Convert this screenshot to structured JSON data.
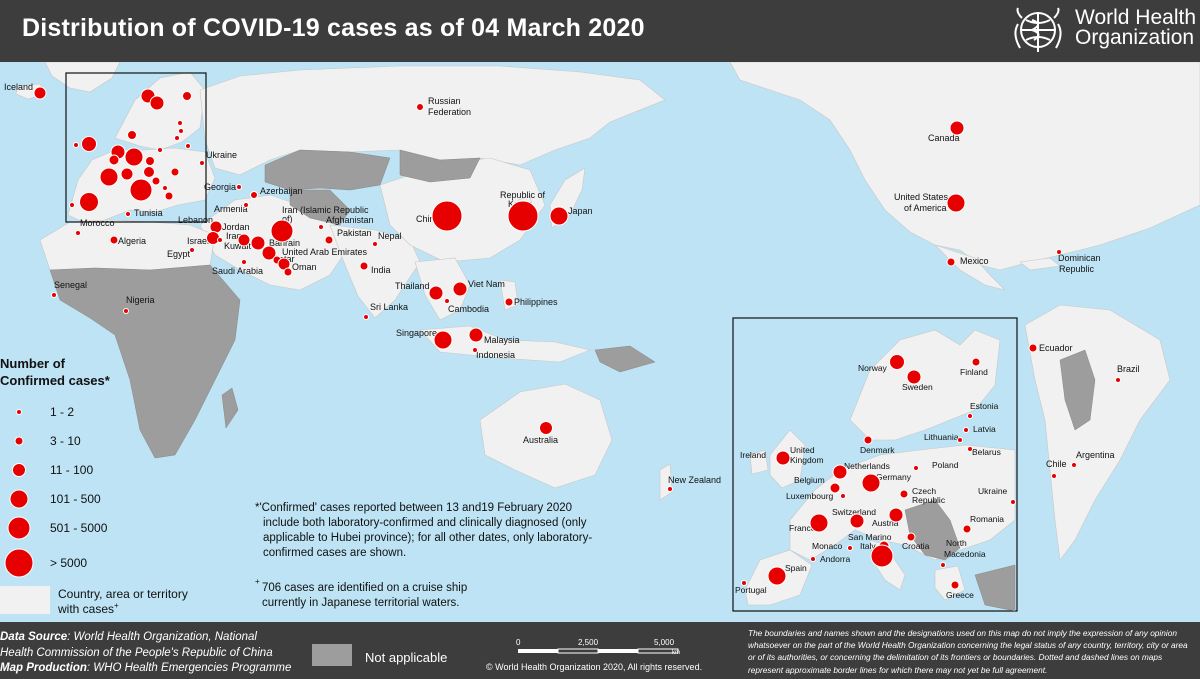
{
  "header": {
    "title": "Distribution of COVID-19 cases as of 04 March 2020",
    "logo_text_1": "World Health",
    "logo_text_2": "Organization"
  },
  "legend": {
    "title_1": "Number of",
    "title_2": "Confirmed cases*",
    "classes": [
      "1 - 2",
      "3 - 10",
      "11 - 100",
      "101 - 500",
      "501 - 5000",
      "> 5000"
    ],
    "country_cases_1": "Country, area or territory",
    "country_cases_2": "with cases",
    "country_cases_sup": "+"
  },
  "notes": {
    "star_1": "*'Confirmed' cases reported between 13 and19 February 2020",
    "star_2": "include both laboratory-confirmed and clinically diagnosed (only",
    "star_3": "applicable to Hubei province); for all other dates, only laboratory-",
    "star_4": "confirmed cases are shown.",
    "plus_sup": "+",
    "plus_1": "706 cases are identified on a cruise ship",
    "plus_2": "currently in Japanese territorial waters."
  },
  "footer": {
    "data_source_label": "Data Source",
    "data_source_1": ": World Health Organization, National",
    "data_source_2": "Health Commission of the People's Republic of China",
    "map_production_label": "Map Production",
    "map_production": ": WHO Health Emergencies Programme",
    "not_applicable": "Not applicable",
    "copyright": "© World Health Organization 2020, All rights reserved.",
    "scale": [
      "0",
      "2,500",
      "5,000"
    ],
    "scale_unit": "km",
    "disclaimer": "The boundaries and names shown and the designations used on this map do not imply the expression of any opinion whatsoever on the part of the World Health Organization concerning the legal status of any country, territory, city or area or of its authorities, or concerning the delimitation of its frontiers or boundaries. Dotted and dashed lines on maps represent approximate border lines for which there may not yet be full agreement."
  },
  "colors": {
    "ocean": "#bde3f4",
    "land_with_cases": "#f1f1f1",
    "land_no_cases": "#9d9d9d",
    "bubble": "#e60000",
    "header_footer": "#3d3d3d"
  },
  "world_labels": [
    {
      "name": "Iceland",
      "size": 2
    },
    {
      "name": "Russian Federation",
      "size": 2
    },
    {
      "name": "Ukraine",
      "size": 1
    },
    {
      "name": "Georgia",
      "size": 1
    },
    {
      "name": "Azerbaijan",
      "size": 2
    },
    {
      "name": "Armenia",
      "size": 1
    },
    {
      "name": "Iran (Islamic Republic of)",
      "size": 6
    },
    {
      "name": "Afghanistan",
      "size": 1
    },
    {
      "name": "Pakistan",
      "size": 2
    },
    {
      "name": "Nepal",
      "size": 1
    },
    {
      "name": "China",
      "size": 6
    },
    {
      "name": "Republic of Korea",
      "size": 6
    },
    {
      "name": "Japan",
      "size": 4
    },
    {
      "name": "Canada",
      "size": 3
    },
    {
      "name": "United States of America",
      "size": 4
    },
    {
      "name": "Mexico",
      "size": 2
    },
    {
      "name": "Dominican Republic",
      "size": 1
    },
    {
      "name": "Morocco",
      "size": 1
    },
    {
      "name": "Algeria",
      "size": 2
    },
    {
      "name": "Tunisia",
      "size": 1
    },
    {
      "name": "Lebanon",
      "size": 3
    },
    {
      "name": "Israel",
      "size": 3
    },
    {
      "name": "Jordan",
      "size": 1
    },
    {
      "name": "Iraq",
      "size": 3
    },
    {
      "name": "Kuwait",
      "size": 3
    },
    {
      "name": "Bahrain",
      "size": 3
    },
    {
      "name": "Qatar",
      "size": 2
    },
    {
      "name": "United Arab Emirates",
      "size": 3
    },
    {
      "name": "Oman",
      "size": 2
    },
    {
      "name": "Saudi Arabia",
      "size": 1
    },
    {
      "name": "Egypt",
      "size": 1
    },
    {
      "name": "India",
      "size": 2
    },
    {
      "name": "Sri Lanka",
      "size": 1
    },
    {
      "name": "Thailand",
      "size": 3
    },
    {
      "name": "Viet Nam",
      "size": 3
    },
    {
      "name": "Cambodia",
      "size": 1
    },
    {
      "name": "Philippines",
      "size": 2
    },
    {
      "name": "Singapore",
      "size": 4
    },
    {
      "name": "Malaysia",
      "size": 3
    },
    {
      "name": "Indonesia",
      "size": 1
    },
    {
      "name": "Australia",
      "size": 3
    },
    {
      "name": "New Zealand",
      "size": 1
    },
    {
      "name": "Senegal",
      "size": 1
    },
    {
      "name": "Nigeria",
      "size": 1
    },
    {
      "name": "Ecuador",
      "size": 2
    },
    {
      "name": "Brazil",
      "size": 1
    },
    {
      "name": "Chile",
      "size": 1
    },
    {
      "name": "Argentina",
      "size": 1
    }
  ],
  "europe_labels": [
    {
      "name": "Norway",
      "size": 3
    },
    {
      "name": "Sweden",
      "size": 3
    },
    {
      "name": "Finland",
      "size": 2
    },
    {
      "name": "Estonia",
      "size": 1
    },
    {
      "name": "Latvia",
      "size": 1
    },
    {
      "name": "Lithuania",
      "size": 1
    },
    {
      "name": "Belarus",
      "size": 1
    },
    {
      "name": "Denmark",
      "size": 2
    },
    {
      "name": "Ireland",
      "size": 1
    },
    {
      "name": "United Kingdom",
      "size": 3
    },
    {
      "name": "Netherlands",
      "size": 3
    },
    {
      "name": "Belgium",
      "size": 2
    },
    {
      "name": "Luxembourg",
      "size": 1
    },
    {
      "name": "Germany",
      "size": 4
    },
    {
      "name": "Poland",
      "size": 1
    },
    {
      "name": "Czech Republic",
      "size": 2
    },
    {
      "name": "Ukraine",
      "size": 1
    },
    {
      "name": "France",
      "size": 4
    },
    {
      "name": "Switzerland",
      "size": 3
    },
    {
      "name": "Austria",
      "size": 3
    },
    {
      "name": "San Marino",
      "size": 2
    },
    {
      "name": "Italy",
      "size": 5
    },
    {
      "name": "Croatia",
      "size": 2
    },
    {
      "name": "Romania",
      "size": 2
    },
    {
      "name": "North Macedonia",
      "size": 1
    },
    {
      "name": "Monaco",
      "size": 1
    },
    {
      "name": "Andorra",
      "size": 1
    },
    {
      "name": "Spain",
      "size": 4
    },
    {
      "name": "Portugal",
      "size": 1
    },
    {
      "name": "Greece",
      "size": 2
    }
  ]
}
